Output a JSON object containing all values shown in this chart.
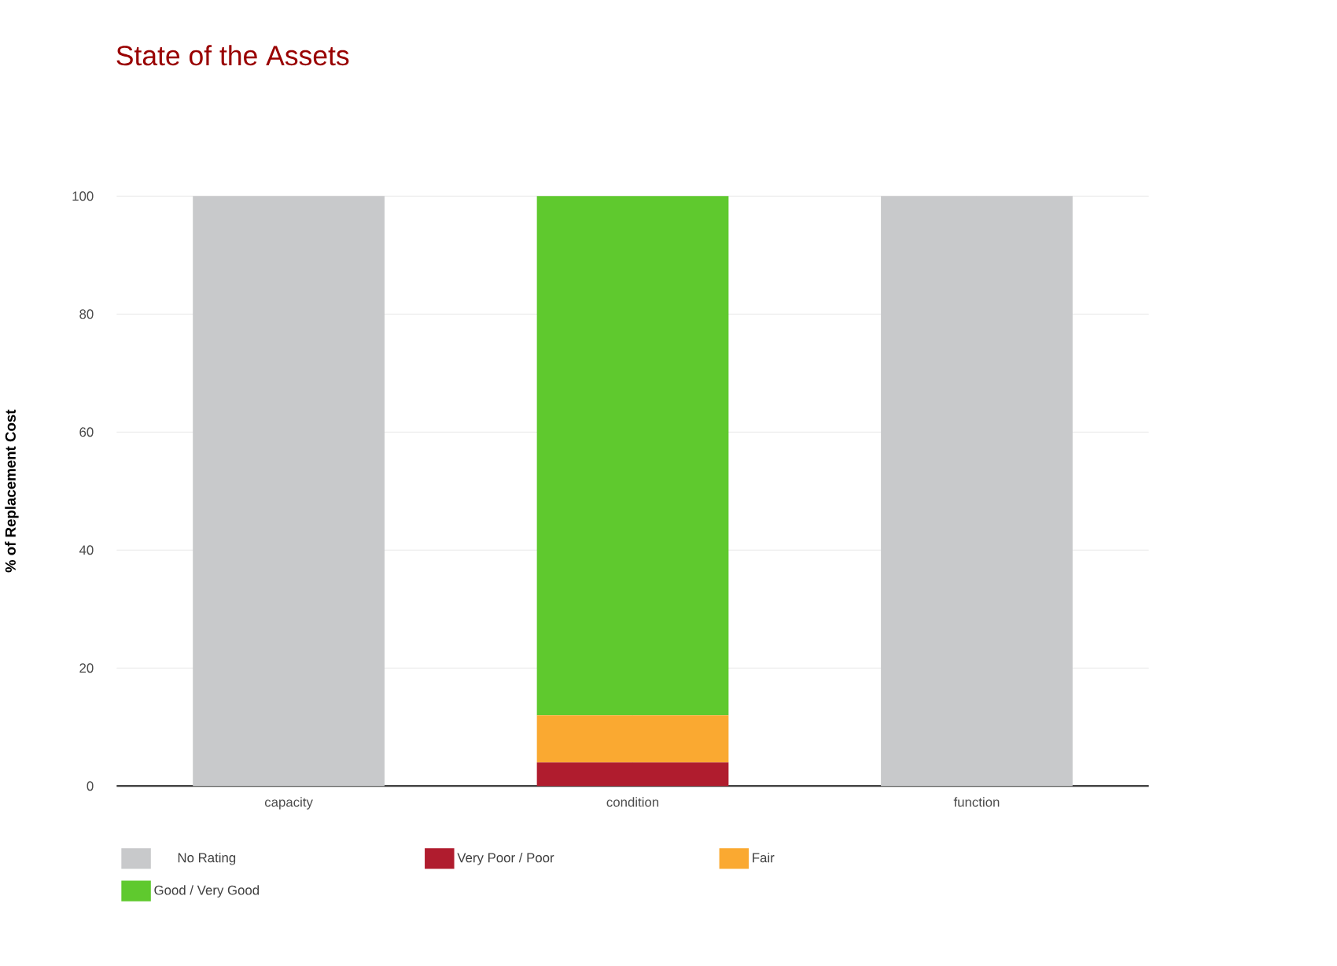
{
  "chart_data": {
    "type": "bar",
    "title": "State of the Assets",
    "ylabel": "% of Replacement Cost",
    "categories": [
      "capacity",
      "condition",
      "function"
    ],
    "series": [
      {
        "name": "No Rating",
        "color": "#c8c9cb",
        "values": [
          100,
          0,
          100
        ]
      },
      {
        "name": "Very Poor / Poor",
        "color": "#b01c2e",
        "values": [
          0,
          4,
          0
        ]
      },
      {
        "name": "Fair",
        "color": "#faa931",
        "values": [
          0,
          8,
          0
        ]
      },
      {
        "name": "Good / Very Good",
        "color": "#5fc92e",
        "values": [
          0,
          88,
          0
        ]
      }
    ],
    "stacked": true,
    "ylim": [
      0,
      100
    ],
    "yticks": [
      0,
      20,
      40,
      60,
      80,
      100
    ],
    "grid": true,
    "legend": "bottom"
  }
}
